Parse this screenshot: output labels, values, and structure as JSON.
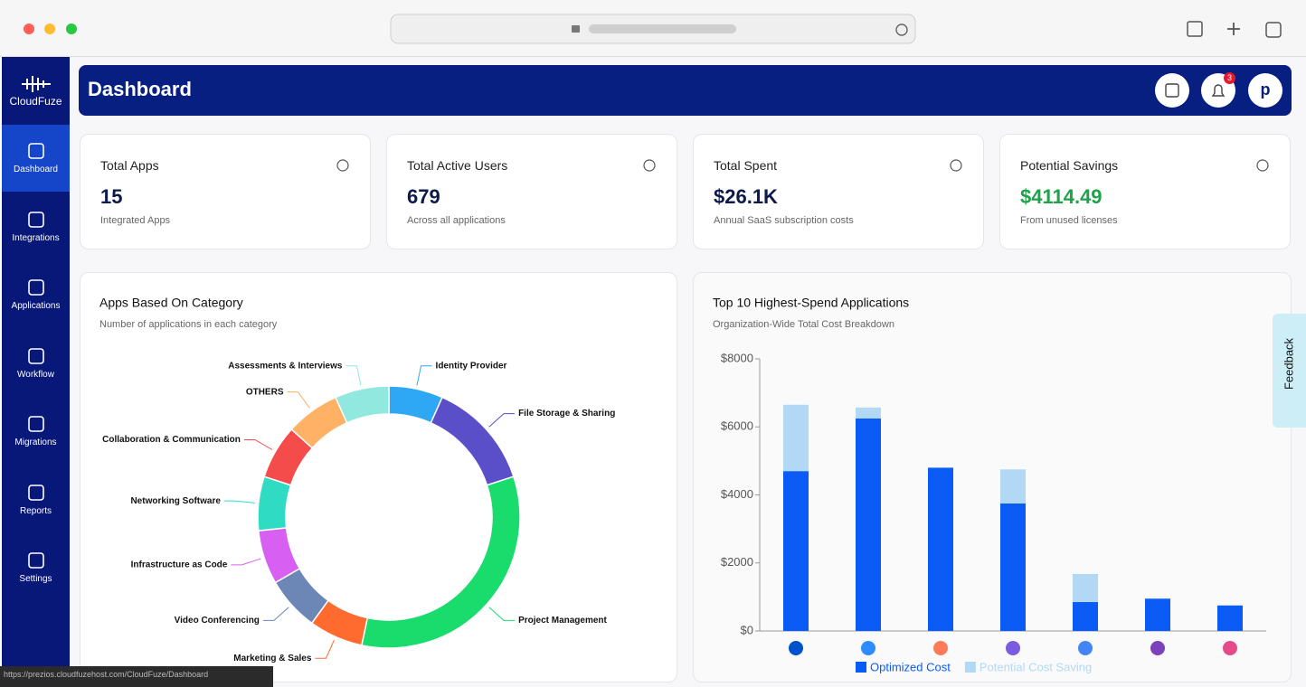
{
  "browser": {
    "status_url": "https://prezios.cloudfuzehost.com/CloudFuze/Dashboard"
  },
  "sidebar": {
    "logo": "CloudFuze",
    "items": [
      "Dashboard",
      "Integrations",
      "Applications",
      "Workflow",
      "Migrations",
      "Reports",
      "Settings"
    ]
  },
  "header": {
    "title": "Dashboard",
    "notification_count": "3",
    "avatar": "p"
  },
  "cards": [
    {
      "title": "Total Apps",
      "value": "15",
      "subtitle": "Integrated Apps"
    },
    {
      "title": "Total Active Users",
      "value": "679",
      "subtitle": "Across all applications"
    },
    {
      "title": "Total Spent",
      "value": "$26.1K",
      "subtitle": "Annual SaaS subscription costs"
    },
    {
      "title": "Potential Savings",
      "value": "$4114.49",
      "subtitle": "From unused licenses"
    }
  ],
  "chart_data": [
    {
      "type": "donut",
      "title": "Apps Based On Category",
      "subtitle": "Number of applications in each category",
      "categories": [
        "Identity Provider",
        "File Storage & Sharing",
        "Project Management",
        "Marketing & Sales",
        "Video Conferencing",
        "Infrastructure as Code",
        "Networking Software",
        "Collaboration & Communication",
        "OTHERS",
        "Assessments & Interviews"
      ],
      "values": [
        1,
        2,
        5,
        1,
        1,
        1,
        1,
        1,
        1,
        1
      ],
      "colors": [
        "#2ea8f5",
        "#5a4fc8",
        "#19dc6c",
        "#ff6b2e",
        "#6c86b6",
        "#d760f3",
        "#2fdcc3",
        "#f44b4b",
        "#ffb265",
        "#90e8df"
      ]
    },
    {
      "type": "bar",
      "stacked": true,
      "title": "Top 10 Highest-Spend Applications",
      "subtitle": "Organization-Wide Total Cost Breakdown",
      "categories": [
        null,
        null,
        null,
        null,
        null,
        null,
        null
      ],
      "series": [
        {
          "name": "Optimized Cost",
          "color": "#0a5cf5",
          "values": [
            4700,
            6250,
            4800,
            3750,
            850,
            950,
            750
          ]
        },
        {
          "name": "Potential Cost Saving",
          "color": "#b1d9f5",
          "values": [
            1950,
            320,
            0,
            1000,
            825,
            0,
            0
          ]
        }
      ],
      "ylim": [
        0,
        8000
      ],
      "yticks": [
        {
          "value": 0,
          "label": "$0"
        },
        {
          "value": 2000,
          "label": "$2000"
        },
        {
          "value": 4000,
          "label": "$4000"
        },
        {
          "value": 6000,
          "label": "$6000"
        },
        {
          "value": 8000,
          "label": "$8000"
        }
      ],
      "legend": "bottom"
    }
  ],
  "feedback": "Feedback"
}
